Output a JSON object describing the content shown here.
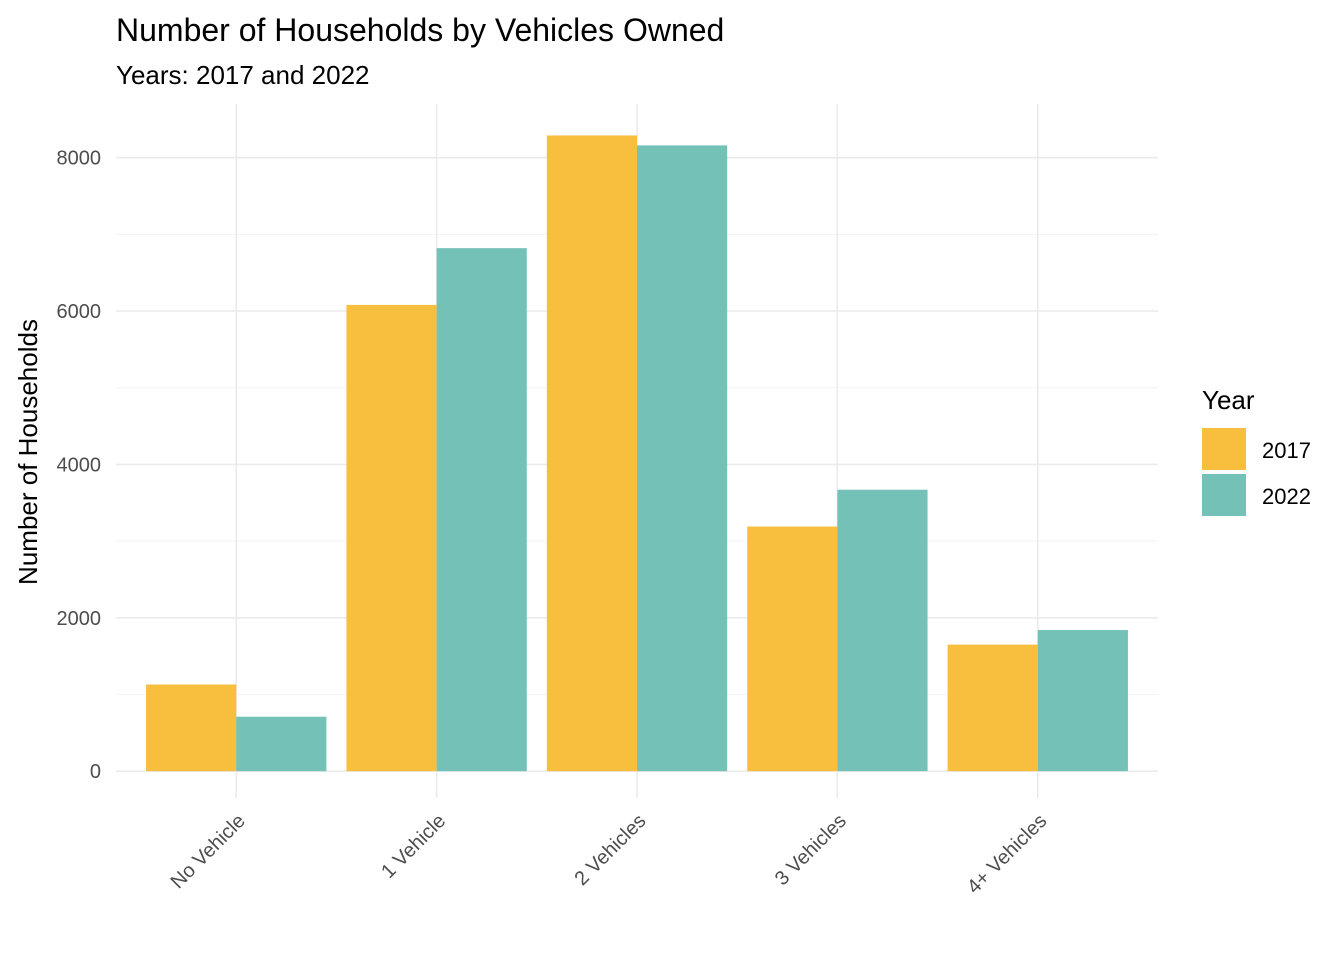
{
  "chart_data": {
    "type": "bar",
    "title": "Number of Households by Vehicles Owned",
    "subtitle": "Years: 2017 and 2022",
    "xlabel": "",
    "ylabel": "Number of Households",
    "categories": [
      "No Vehicle",
      "1 Vehicle",
      "2 Vehicles",
      "3 Vehicles",
      "4+ Vehicles"
    ],
    "series": [
      {
        "name": "2017",
        "color": "#F8BF3F",
        "values": [
          1130,
          6080,
          8290,
          3190,
          1650
        ]
      },
      {
        "name": "2022",
        "color": "#74C1B8",
        "values": [
          710,
          6820,
          8160,
          3670,
          1840
        ]
      }
    ],
    "ylim": [
      -350,
      8700
    ],
    "yticks": [
      0,
      2000,
      4000,
      6000,
      8000
    ],
    "ytick_labels": [
      "0",
      "2000",
      "4000",
      "6000",
      "8000"
    ],
    "grid": true,
    "legend": {
      "title": "Year",
      "position": "right"
    }
  }
}
